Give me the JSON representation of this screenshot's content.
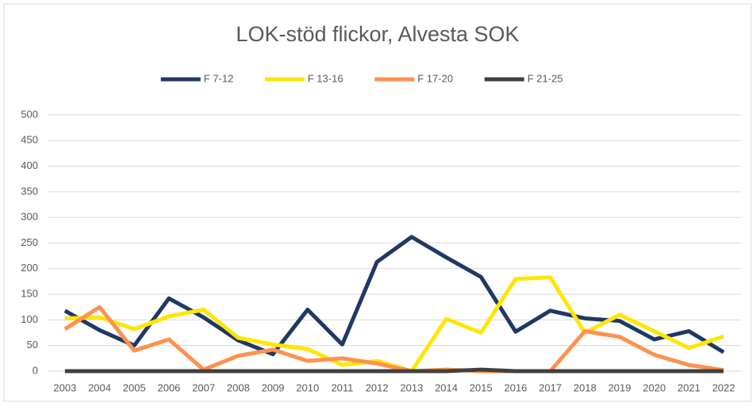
{
  "chart_data": {
    "type": "line",
    "title": "LOK-stöd flickor, Alvesta SOK",
    "categories": [
      "2003",
      "2004",
      "2005",
      "2006",
      "2007",
      "2008",
      "2009",
      "2010",
      "2011",
      "2012",
      "2013",
      "2014",
      "2015",
      "2016",
      "2017",
      "2018",
      "2019",
      "2020",
      "2021",
      "2022"
    ],
    "series": [
      {
        "name": "F 7-12",
        "color": "#1f3864",
        "values": [
          118,
          80,
          50,
          142,
          105,
          60,
          33,
          120,
          52,
          213,
          262,
          222,
          184,
          77,
          118,
          103,
          98,
          62,
          78,
          37
        ]
      },
      {
        "name": "F 13-16",
        "color": "#ffe600",
        "values": [
          103,
          105,
          82,
          107,
          120,
          65,
          52,
          43,
          12,
          20,
          0,
          102,
          75,
          180,
          183,
          75,
          110,
          78,
          45,
          68
        ]
      },
      {
        "name": "F 17-20",
        "color": "#ff914d",
        "values": [
          82,
          125,
          40,
          62,
          3,
          30,
          42,
          20,
          25,
          15,
          0,
          3,
          0,
          0,
          0,
          78,
          67,
          32,
          12,
          2
        ]
      },
      {
        "name": "F 21-25",
        "color": "#404040",
        "values": [
          0,
          0,
          0,
          0,
          0,
          0,
          0,
          0,
          0,
          0,
          0,
          0,
          3,
          0,
          0,
          0,
          0,
          0,
          0,
          0
        ]
      }
    ],
    "ylim": [
      0,
      500
    ],
    "yticks": [
      0,
      50,
      100,
      150,
      200,
      250,
      300,
      350,
      400,
      450,
      500
    ],
    "grid": true,
    "legend": "top"
  }
}
